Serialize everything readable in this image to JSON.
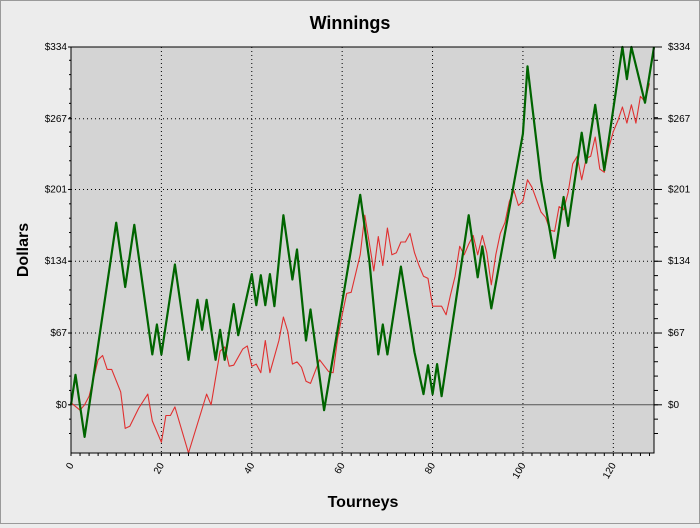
{
  "chart_data": {
    "type": "line",
    "title": "Winnings",
    "xlabel": "Tourneys",
    "ylabel": "Dollars",
    "xlim": [
      0,
      129
    ],
    "ylim": [
      -45,
      334
    ],
    "x_ticks": [
      0,
      20,
      40,
      60,
      80,
      100,
      120
    ],
    "y_ticks": [
      0,
      67,
      134,
      201,
      267,
      334
    ],
    "y_tick_labels": [
      "$0",
      "$67",
      "$134",
      "$201",
      "$267",
      "$334"
    ],
    "y_axis_both_sides": true,
    "grid": true,
    "legend": "none",
    "colors": {
      "plot_background": "#d4d4d4",
      "frame_background": "#ececec",
      "series_1": "#006400",
      "series_2": "#e03030",
      "grid": "#000000",
      "zero_line": "#555555"
    },
    "series": [
      {
        "color": "#006400",
        "points": [
          [
            0,
            0
          ],
          [
            1,
            28
          ],
          [
            3,
            -30
          ],
          [
            10,
            170
          ],
          [
            12,
            110
          ],
          [
            14,
            168
          ],
          [
            18,
            47
          ],
          [
            19,
            75
          ],
          [
            20,
            47
          ],
          [
            23,
            131
          ],
          [
            26,
            42
          ],
          [
            28,
            98
          ],
          [
            29,
            70
          ],
          [
            30,
            98
          ],
          [
            32,
            42
          ],
          [
            33,
            70
          ],
          [
            34,
            42
          ],
          [
            36,
            94
          ],
          [
            37,
            65
          ],
          [
            40,
            122
          ],
          [
            41,
            93
          ],
          [
            42,
            121
          ],
          [
            43,
            93
          ],
          [
            44,
            122
          ],
          [
            45,
            92
          ],
          [
            47,
            177
          ],
          [
            49,
            117
          ],
          [
            50,
            145
          ],
          [
            52,
            60
          ],
          [
            53,
            89
          ],
          [
            56,
            -5
          ],
          [
            64,
            196
          ],
          [
            66,
            135
          ],
          [
            68,
            47
          ],
          [
            69,
            75
          ],
          [
            70,
            47
          ],
          [
            73,
            129
          ],
          [
            76,
            49
          ],
          [
            78,
            10
          ],
          [
            79,
            37
          ],
          [
            80,
            10
          ],
          [
            81,
            38
          ],
          [
            82,
            8
          ],
          [
            88,
            177
          ],
          [
            90,
            119
          ],
          [
            91,
            148
          ],
          [
            93,
            90
          ],
          [
            100,
            253
          ],
          [
            101,
            316
          ],
          [
            104,
            210
          ],
          [
            107,
            137
          ],
          [
            109,
            194
          ],
          [
            110,
            167
          ],
          [
            113,
            254
          ],
          [
            114,
            226
          ],
          [
            116,
            280
          ],
          [
            118,
            219
          ],
          [
            122,
            334
          ],
          [
            123,
            304
          ],
          [
            124,
            334
          ],
          [
            127,
            282
          ],
          [
            129,
            334
          ]
        ]
      },
      {
        "color": "#e03030",
        "points": [
          [
            0,
            2
          ],
          [
            2,
            -5
          ],
          [
            3,
            0
          ],
          [
            4,
            8
          ],
          [
            6,
            42
          ],
          [
            7,
            46
          ],
          [
            8,
            33
          ],
          [
            9,
            33
          ],
          [
            11,
            12
          ],
          [
            12,
            -22
          ],
          [
            13,
            -20
          ],
          [
            15,
            -3
          ],
          [
            17,
            10
          ],
          [
            18,
            -15
          ],
          [
            20,
            -35
          ],
          [
            21,
            -10
          ],
          [
            22,
            -10
          ],
          [
            23,
            -2
          ],
          [
            26,
            -45
          ],
          [
            30,
            10
          ],
          [
            31,
            0
          ],
          [
            33,
            50
          ],
          [
            34,
            54
          ],
          [
            35,
            36
          ],
          [
            36,
            37
          ],
          [
            38,
            52
          ],
          [
            39,
            55
          ],
          [
            40,
            36
          ],
          [
            41,
            38
          ],
          [
            42,
            30
          ],
          [
            43,
            60
          ],
          [
            44,
            30
          ],
          [
            46,
            60
          ],
          [
            47,
            82
          ],
          [
            48,
            68
          ],
          [
            49,
            38
          ],
          [
            50,
            40
          ],
          [
            51,
            35
          ],
          [
            52,
            22
          ],
          [
            53,
            20
          ],
          [
            55,
            42
          ],
          [
            57,
            31
          ],
          [
            58,
            30
          ],
          [
            59,
            62
          ],
          [
            60,
            84
          ],
          [
            61,
            104
          ],
          [
            62,
            105
          ],
          [
            64,
            140
          ],
          [
            65,
            177
          ],
          [
            67,
            125
          ],
          [
            68,
            157
          ],
          [
            69,
            130
          ],
          [
            70,
            165
          ],
          [
            71,
            140
          ],
          [
            72,
            142
          ],
          [
            73,
            152
          ],
          [
            74,
            152
          ],
          [
            75,
            160
          ],
          [
            76,
            142
          ],
          [
            77,
            130
          ],
          [
            78,
            120
          ],
          [
            79,
            118
          ],
          [
            80,
            92
          ],
          [
            82,
            92
          ],
          [
            83,
            84
          ],
          [
            84,
            103
          ],
          [
            85,
            120
          ],
          [
            86,
            148
          ],
          [
            87,
            140
          ],
          [
            88,
            150
          ],
          [
            89,
            158
          ],
          [
            90,
            140
          ],
          [
            91,
            158
          ],
          [
            92,
            142
          ],
          [
            93,
            112
          ],
          [
            94,
            140
          ],
          [
            95,
            160
          ],
          [
            96,
            170
          ],
          [
            97,
            190
          ],
          [
            98,
            200
          ],
          [
            99,
            186
          ],
          [
            100,
            190
          ],
          [
            101,
            210
          ],
          [
            102,
            203
          ],
          [
            104,
            180
          ],
          [
            105,
            175
          ],
          [
            106,
            163
          ],
          [
            107,
            162
          ],
          [
            108,
            185
          ],
          [
            109,
            182
          ],
          [
            110,
            198
          ],
          [
            111,
            225
          ],
          [
            112,
            232
          ],
          [
            113,
            210
          ],
          [
            114,
            230
          ],
          [
            115,
            232
          ],
          [
            116,
            250
          ],
          [
            117,
            220
          ],
          [
            118,
            217
          ],
          [
            119,
            240
          ],
          [
            120,
            255
          ],
          [
            121,
            265
          ],
          [
            122,
            278
          ],
          [
            123,
            263
          ],
          [
            124,
            280
          ],
          [
            125,
            263
          ],
          [
            126,
            288
          ],
          [
            127,
            283
          ],
          [
            128,
            300
          ]
        ]
      }
    ]
  }
}
